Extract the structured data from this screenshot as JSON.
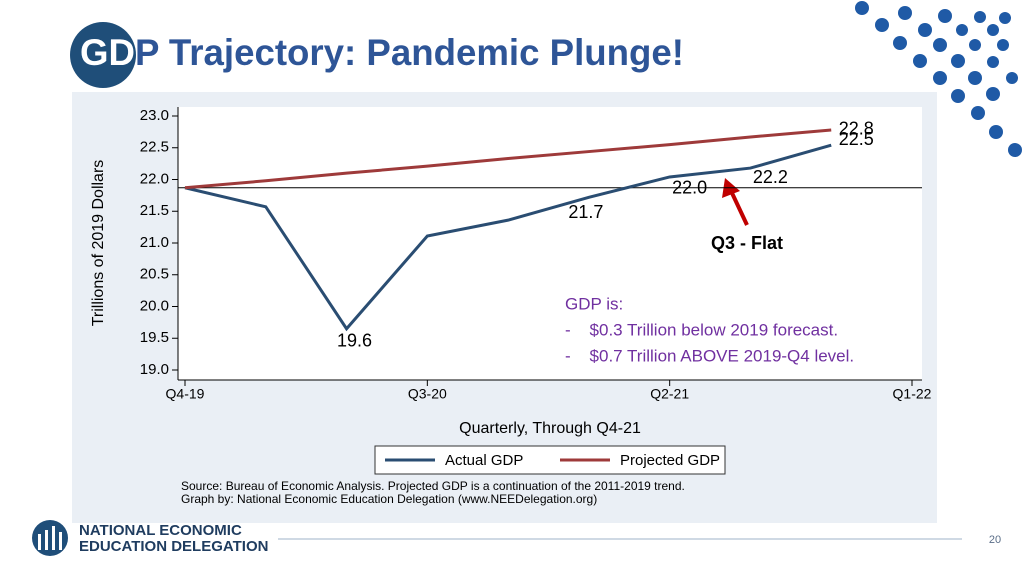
{
  "title": "GDP Trajectory: Pandemic Plunge!",
  "chart_data": {
    "type": "line",
    "ylabel": "Trillions of 2019 Dollars",
    "xlabel": "Quarterly, Through Q4-21",
    "x": [
      0,
      1,
      2,
      3,
      4,
      5,
      6,
      7,
      8
    ],
    "xlim": [
      0,
      9
    ],
    "xticks": [
      {
        "value": 0,
        "label": "Q4-19"
      },
      {
        "value": 3,
        "label": "Q3-20"
      },
      {
        "value": 6,
        "label": "Q2-21"
      },
      {
        "value": 9,
        "label": "Q1-22"
      }
    ],
    "ylim": [
      19.0,
      23.0
    ],
    "yticks": [
      {
        "value": 19.0,
        "label": "19.0"
      },
      {
        "value": 19.5,
        "label": "19.5"
      },
      {
        "value": 20.0,
        "label": "20.0"
      },
      {
        "value": 20.5,
        "label": "20.5"
      },
      {
        "value": 21.0,
        "label": "21.0"
      },
      {
        "value": 21.5,
        "label": "21.5"
      },
      {
        "value": 22.0,
        "label": "22.0"
      },
      {
        "value": 22.5,
        "label": "22.5"
      },
      {
        "value": 23.0,
        "label": "23.0"
      }
    ],
    "reference_line": 21.87,
    "series": [
      {
        "name": "Actual GDP",
        "color": "#2a4d72",
        "values": [
          21.87,
          21.57,
          19.65,
          21.11,
          21.36,
          21.72,
          22.04,
          22.18,
          22.54
        ],
        "value_labels": [
          null,
          null,
          "19.6",
          null,
          null,
          "21.7",
          "22.0",
          "22.2",
          "22.5"
        ]
      },
      {
        "name": "Projected GDP",
        "color": "#9e3a3a",
        "values": [
          21.87,
          21.98,
          22.1,
          22.21,
          22.33,
          22.44,
          22.55,
          22.67,
          22.78
        ],
        "value_labels": [
          null,
          null,
          null,
          null,
          null,
          null,
          null,
          null,
          "22.8"
        ]
      }
    ],
    "annotation": "Q3 - Flat",
    "note_lines": [
      "GDP is:",
      "-    $0.3 Trillion below 2019 forecast.",
      "-    $0.7 Trillion ABOVE 2019-Q4 level."
    ],
    "source_lines": [
      "Source: Bureau of Economic Analysis. Projected GDP is a continuation of the 2011-2019 trend.",
      "Graph by: National Economic Education Delegation (www.NEEDelegation.org)"
    ]
  },
  "footer": {
    "org_line1": "NATIONAL ECONOMIC",
    "org_line2": "EDUCATION DELEGATION",
    "page": "20"
  }
}
